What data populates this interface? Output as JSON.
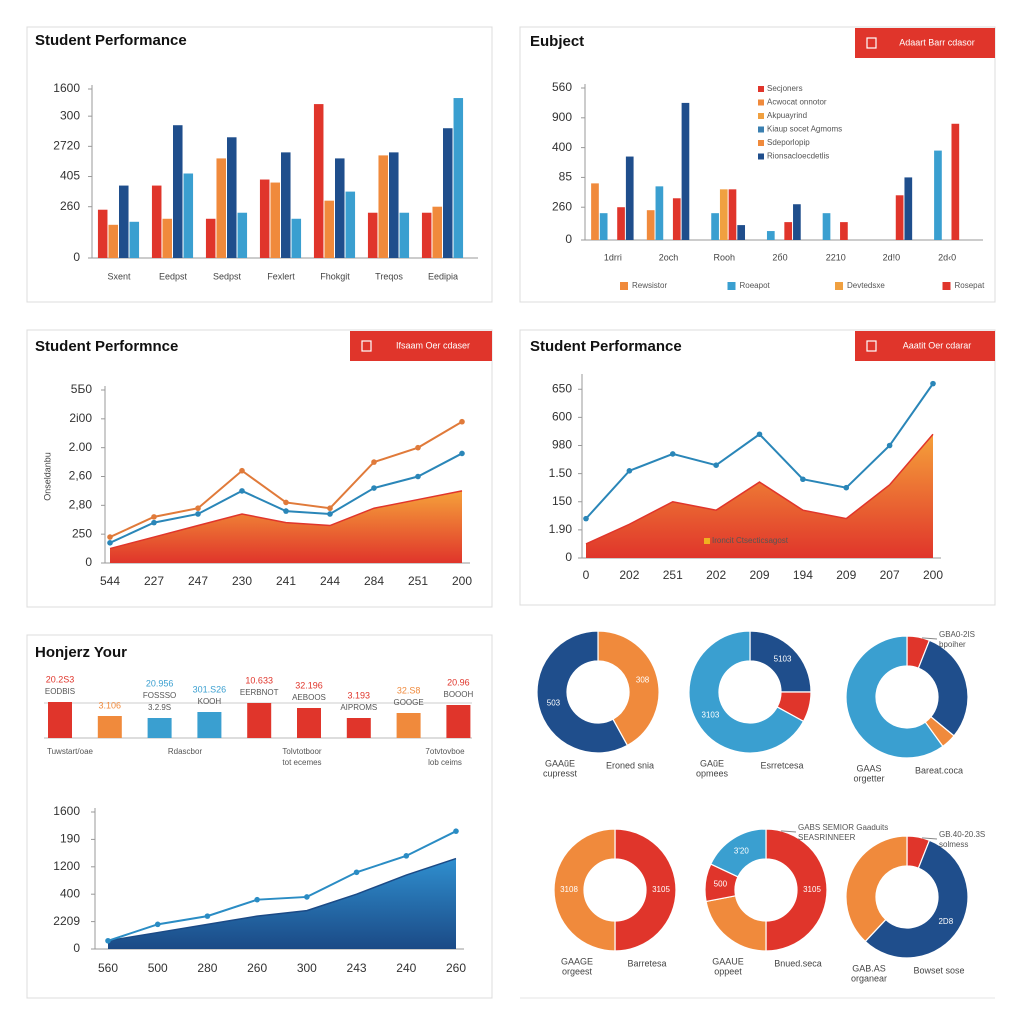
{
  "chart_data": [
    {
      "type": "bar",
      "title": "Student Performance",
      "categories": [
        "Sxent",
        "Eedpst",
        "Sedpst",
        "Fexlert",
        "Fhokgit",
        "Treqos",
        "Eedipia"
      ],
      "series": [
        {
          "color": "#e0352b",
          "values": [
            1.6,
            2.4,
            1.3,
            2.6,
            5.1,
            1.5,
            1.5
          ]
        },
        {
          "color": "#f08a3c",
          "values": [
            1.1,
            1.3,
            3.3,
            2.5,
            1.9,
            3.4,
            1.7
          ]
        },
        {
          "color": "#1f4e8c",
          "values": [
            2.4,
            4.4,
            4.0,
            3.5,
            3.3,
            3.5,
            4.3
          ]
        },
        {
          "color": "#3a9fd0",
          "values": [
            1.2,
            2.8,
            1.5,
            1.3,
            2.2,
            1.5,
            5.3
          ]
        }
      ],
      "ylim": [
        0,
        5.6
      ],
      "yticks": [
        0,
        {
          "value": 1.7,
          "label": "260"
        },
        {
          "value": 2.7,
          "label": "405"
        },
        {
          "value": 3.7,
          "label": "2720"
        },
        {
          "value": 4.7,
          "label": "300"
        },
        {
          "value": 5.6,
          "label": "1600"
        }
      ]
    },
    {
      "type": "bar",
      "title": "Eubject",
      "button": "Adaart Barr cdasor",
      "categories": [
        "1drri",
        "2och",
        "Rooh",
        "2б0",
        "2210",
        "2d!0",
        "2d‹0"
      ],
      "series": [
        {
          "name": "Rewsistor",
          "color": "#f08a3c",
          "values": [
            1.9,
            1.0,
            null,
            null,
            null,
            null,
            null
          ]
        },
        {
          "name": "Roeapot",
          "color": "#3a9fd0",
          "values": [
            0.9,
            1.8,
            0.9,
            0.3,
            0.9,
            null,
            3.0
          ]
        },
        {
          "name": "Devtedsxe",
          "color": "#f0a040",
          "values": [
            null,
            null,
            1.7,
            null,
            null,
            null,
            null
          ]
        },
        {
          "name": "Rosepat",
          "color": "#e0352b",
          "values": [
            1.1,
            1.4,
            1.7,
            0.6,
            0.6,
            1.5,
            3.9
          ]
        },
        {
          "color": "#1f4e8c",
          "values": [
            2.8,
            4.6,
            0.5,
            1.2,
            null,
            2.1,
            null
          ]
        }
      ],
      "key": [
        {
          "label": "Secjoners",
          "color": "#e0352b"
        },
        {
          "label": "Acwocat onnotor",
          "color": "#f08a3c"
        },
        {
          "label": "Akpuayrind",
          "color": "#f0a040"
        },
        {
          "label": "Kiaup socet Agmoms",
          "color": "#3a7fb0"
        },
        {
          "label": "Sdeporlopip",
          "color": "#f08a3c"
        },
        {
          "label": "Rionsacloecdetlis",
          "color": "#1f4e8c"
        }
      ],
      "legend": "bottom",
      "ylim": [
        0,
        5.1
      ],
      "yticks": [
        0,
        {
          "value": 1.1,
          "label": "260"
        },
        {
          "value": 2.1,
          "label": "85"
        },
        {
          "value": 3.1,
          "label": "400"
        },
        {
          "value": 4.1,
          "label": "900"
        },
        {
          "value": 5.1,
          "label": "560"
        }
      ]
    },
    {
      "type": "line",
      "title": "Student Performnce",
      "button": "Ifsaam Oer cdaser",
      "ylabel": "Onseldanbu",
      "categories": [
        "544",
        "227",
        "247",
        "230",
        "241",
        "244",
        "284",
        "251",
        "200"
      ],
      "series": [
        {
          "area": true,
          "color": "#f5a13a",
          "color2": "#e0352b",
          "values": [
            0.5,
            0.9,
            1.3,
            1.7,
            1.4,
            1.3,
            1.9,
            2.2,
            2.5
          ]
        },
        {
          "color": "#e07a3a",
          "values": [
            0.9,
            1.6,
            1.9,
            3.2,
            2.1,
            1.9,
            3.5,
            4.0,
            4.9
          ]
        },
        {
          "color": "#2a86b8",
          "values": [
            0.7,
            1.4,
            1.7,
            2.5,
            1.8,
            1.7,
            2.6,
            3.0,
            3.8
          ]
        }
      ],
      "ylim": [
        0,
        6
      ],
      "yticks": [
        0,
        {
          "value": 1,
          "label": "250"
        },
        {
          "value": 2,
          "label": "2,80"
        },
        {
          "value": 3,
          "label": "2,60"
        },
        {
          "value": 4,
          "label": "2.00"
        },
        {
          "value": 5,
          "label": "2i00"
        },
        {
          "value": 6,
          "label": "5Б0"
        }
      ]
    },
    {
      "type": "line",
      "title": "Student Performance",
      "button": "Aaatit Oer cdarar",
      "annotation": "Ironcit Ctsecticsagost",
      "categories": [
        "0",
        "202",
        "251",
        "202",
        "209",
        "194",
        "209",
        "207",
        "200"
      ],
      "series": [
        {
          "area": true,
          "color": "#f5a13a",
          "color2": "#e0352b",
          "values": [
            0.5,
            1.2,
            2.0,
            1.7,
            2.7,
            1.7,
            1.4,
            2.6,
            4.4
          ]
        },
        {
          "color": "#2a86b8",
          "values": [
            1.4,
            3.1,
            3.7,
            3.3,
            4.4,
            2.8,
            2.5,
            4.0,
            6.2
          ]
        }
      ],
      "ylim": [
        0,
        6.4
      ],
      "yticks": [
        0,
        {
          "value": 1,
          "label": "1.90"
        },
        {
          "value": 2,
          "label": "150"
        },
        {
          "value": 3,
          "label": "1.50"
        },
        {
          "value": 4,
          "label": "980"
        },
        {
          "value": 5,
          "label": "600"
        },
        {
          "value": 6,
          "label": "650"
        }
      ]
    },
    {
      "type": "bar",
      "title": "Honjerz Your",
      "values": [
        36,
        22,
        20,
        26,
        35,
        30,
        20,
        25,
        33
      ],
      "colors": [
        "#e0352b",
        "#f08a3c",
        "#3a9fd0",
        "#3a9fd0",
        "#e0352b",
        "#e0352b",
        "#e0352b",
        "#f08a3c",
        "#e0352b"
      ],
      "annotations": [
        [
          "20.2S3",
          "EODBIS"
        ],
        [
          "3.106"
        ],
        [
          "20.956",
          "FOSSSO",
          "3.2.9S"
        ],
        [
          "301.S26",
          "KOOH"
        ],
        [
          "10.633",
          "EERBNOT"
        ],
        [
          "32.196",
          "AEBOOS"
        ],
        [
          "3.193",
          "AIPROMS"
        ],
        [
          "32.S8",
          "GOOGE"
        ],
        [
          "20.96",
          "BOOOH"
        ]
      ],
      "footnotes": [
        [
          "Tuwstart/oae"
        ],
        [
          "Rdascbor"
        ],
        [
          "Tolvtotboor",
          "tot ecemes"
        ],
        [
          "7otvtovboe",
          "lob ceims"
        ]
      ]
    },
    {
      "type": "line",
      "categories": [
        "560",
        "500",
        "280",
        "260",
        "300",
        "243",
        "240",
        "260"
      ],
      "series": [
        {
          "area": true,
          "color": "#2f8fcf",
          "color2": "#1b4a86",
          "values": [
            0.3,
            0.6,
            0.9,
            1.2,
            1.4,
            2.0,
            2.7,
            3.3
          ]
        },
        {
          "color": "#2a8cc4",
          "values": [
            0.3,
            0.9,
            1.2,
            1.8,
            1.9,
            2.8,
            3.4,
            4.3
          ]
        }
      ],
      "ylim": [
        0,
        5
      ],
      "yticks": [
        0,
        {
          "value": 1,
          "label": "2209"
        },
        {
          "value": 2,
          "label": "400"
        },
        {
          "value": 3,
          "label": "1200"
        },
        {
          "value": 4,
          "label": "190"
        },
        {
          "value": 5,
          "label": "1600"
        }
      ]
    },
    {
      "type": "donut",
      "values": [
        42,
        58
      ],
      "colors": [
        "#f08a3c",
        "#1f4e8c"
      ],
      "labels": [
        "308",
        "503"
      ],
      "captions": [
        [
          "GAAŭE",
          "cupresst"
        ],
        [
          "Eroned snia"
        ]
      ]
    },
    {
      "type": "donut",
      "values": [
        25,
        8,
        67
      ],
      "colors": [
        "#1f4e8c",
        "#e0352b",
        "#3a9fd0"
      ],
      "labels": [
        "5103",
        null,
        "3103"
      ],
      "captions": [
        [
          "GAŭE",
          "opmees"
        ],
        [
          "Esrretcesa"
        ]
      ]
    },
    {
      "type": "donut",
      "values": [
        6,
        30,
        4,
        60
      ],
      "colors": [
        "#e0352b",
        "#1f4e8c",
        "#f08a3c",
        "#3a9fd0"
      ],
      "callout": [
        "GBA0-2IS",
        "bpoiher"
      ],
      "captions": [
        [
          "GAAS",
          "orgetter"
        ],
        [
          "Bareat.coca"
        ]
      ]
    },
    {
      "type": "donut",
      "values": [
        50,
        50
      ],
      "colors": [
        "#e0352b",
        "#f08a3c"
      ],
      "labels": [
        "3105",
        "3108"
      ],
      "captions": [
        [
          "GAAGE",
          "orgeest"
        ],
        [
          "Barretesa"
        ]
      ]
    },
    {
      "type": "donut",
      "values": [
        50,
        22,
        10,
        18
      ],
      "colors": [
        "#e0352b",
        "#f08a3c",
        "#e0352b",
        "#3a9fd0"
      ],
      "labels": [
        "3105",
        null,
        "500",
        "3'20"
      ],
      "callout": [
        "GABS SEMIOR Gaaduits",
        "SEASRINNEER"
      ],
      "captions": [
        [
          "GAAUE",
          "oppeet"
        ],
        [
          "Bnued.seca"
        ]
      ]
    },
    {
      "type": "donut",
      "values": [
        6,
        56,
        38
      ],
      "colors": [
        "#e0352b",
        "#1f4e8c",
        "#f08a3c"
      ],
      "labels": [
        null,
        "2D8",
        null
      ],
      "callout": [
        "GB.40-20.3S",
        "solmess"
      ],
      "captions": [
        [
          "GAB.AS",
          "organear"
        ],
        [
          "Bowset sose"
        ]
      ]
    }
  ]
}
